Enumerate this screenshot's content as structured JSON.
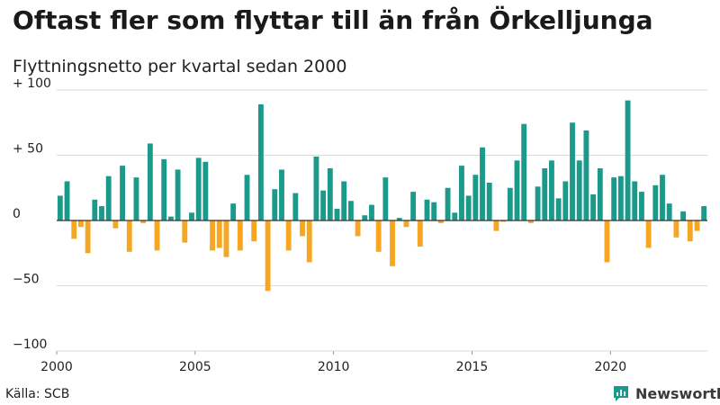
{
  "header": {
    "title": "Oftast fler som flyttar till än från Örkelljunga",
    "subtitle": "Flyttningsnetto per kvartal sedan 2000"
  },
  "footer": {
    "source": "Källa: SCB",
    "brand": "Newsworthy",
    "brand_icon": "newsworthy-logo-icon"
  },
  "colors": {
    "positive": "#1b998b",
    "negative": "#f5a623",
    "grid": "#d9d9d9",
    "baseline": "#333333",
    "brand": "#1b998b"
  },
  "chart_data": {
    "type": "bar",
    "title": "Oftast fler som flyttar till än från Örkelljunga",
    "subtitle": "Flyttningsnetto per kvartal sedan 2000",
    "xlabel": "",
    "ylabel": "",
    "ylim": [
      -100,
      100
    ],
    "yticks": [
      {
        "value": 100,
        "label": "+ 100"
      },
      {
        "value": 50,
        "label": "+ 50"
      },
      {
        "value": 0,
        "label": "0"
      },
      {
        "value": -50,
        "label": "−50"
      },
      {
        "value": -100,
        "label": "−100"
      }
    ],
    "xticks": [
      "2000",
      "2005",
      "2010",
      "2015",
      "2020"
    ],
    "start_year": 2000,
    "grid": true,
    "legend": "none",
    "period": "quarter",
    "values": [
      19,
      30,
      -14,
      -5,
      -25,
      16,
      11,
      34,
      -6,
      42,
      -24,
      33,
      -2,
      59,
      -23,
      47,
      3,
      39,
      -17,
      6,
      48,
      45,
      -23,
      -21,
      -28,
      13,
      -23,
      35,
      -16,
      89,
      -54,
      24,
      39,
      -23,
      21,
      -12,
      -32,
      49,
      23,
      40,
      9,
      30,
      15,
      -12,
      4,
      12,
      -24,
      33,
      -35,
      2,
      -5,
      22,
      -20,
      16,
      14,
      -2,
      25,
      6,
      42,
      19,
      35,
      56,
      29,
      -8,
      -1,
      25,
      46,
      74,
      -2,
      26,
      40,
      46,
      17,
      30,
      75,
      46,
      69,
      20,
      40,
      -32,
      33,
      34,
      92,
      30,
      22,
      -21,
      27,
      35,
      13,
      -13,
      7,
      -16,
      -8,
      11
    ]
  }
}
